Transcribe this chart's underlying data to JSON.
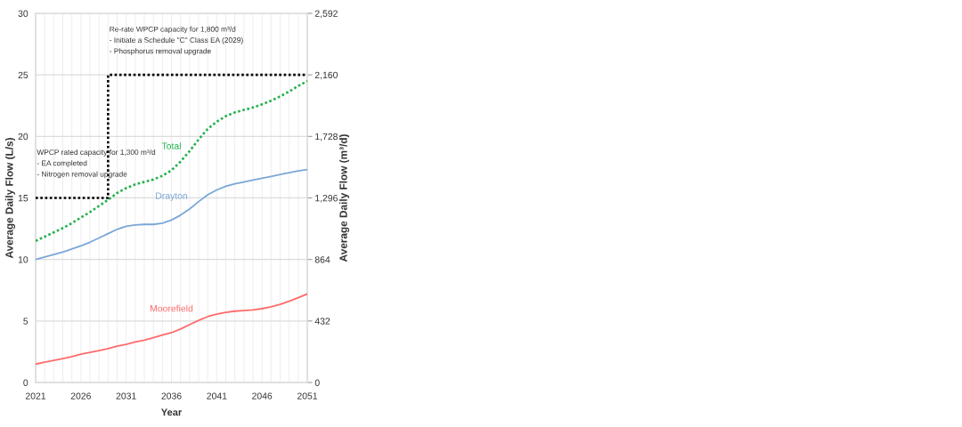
{
  "chart_data": {
    "type": "line",
    "xlabel": "Year",
    "ylabel": "Average Daily Flow (L/s)",
    "y2label": "Average Daily Flow (m³/d)",
    "x": [
      2021,
      2022,
      2023,
      2024,
      2025,
      2026,
      2027,
      2028,
      2029,
      2030,
      2031,
      2032,
      2033,
      2034,
      2035,
      2036,
      2037,
      2038,
      2039,
      2040,
      2041,
      2042,
      2043,
      2044,
      2045,
      2046,
      2047,
      2048,
      2049,
      2050,
      2051
    ],
    "series": [
      {
        "name": "Total",
        "color": "#22b14c",
        "line_style": "dotted",
        "values": [
          11.5,
          11.85,
          12.2,
          12.55,
          12.95,
          13.4,
          13.85,
          14.35,
          14.85,
          15.4,
          15.8,
          16.1,
          16.3,
          16.5,
          16.8,
          17.25,
          17.95,
          18.8,
          19.75,
          20.6,
          21.2,
          21.65,
          21.95,
          22.15,
          22.35,
          22.6,
          22.9,
          23.25,
          23.65,
          24.1,
          24.5
        ]
      },
      {
        "name": "Drayton",
        "color": "#7ba7d7",
        "values": [
          10.0,
          10.2,
          10.4,
          10.6,
          10.85,
          11.1,
          11.4,
          11.75,
          12.1,
          12.45,
          12.7,
          12.8,
          12.85,
          12.85,
          12.95,
          13.2,
          13.6,
          14.1,
          14.7,
          15.25,
          15.65,
          15.95,
          16.15,
          16.3,
          16.45,
          16.6,
          16.75,
          16.9,
          17.05,
          17.2,
          17.3
        ]
      },
      {
        "name": "Moorefield",
        "color": "#ff6b6b",
        "values": [
          1.5,
          1.65,
          1.8,
          1.95,
          2.1,
          2.3,
          2.45,
          2.6,
          2.75,
          2.95,
          3.1,
          3.3,
          3.45,
          3.65,
          3.85,
          4.05,
          4.35,
          4.7,
          5.05,
          5.35,
          5.55,
          5.7,
          5.8,
          5.85,
          5.9,
          6.0,
          6.15,
          6.35,
          6.6,
          6.9,
          7.2
        ]
      },
      {
        "type": "step",
        "color": "#000000",
        "line_style": "dotted",
        "x": [
          2021,
          2029,
          2051
        ],
        "values": [
          15,
          25,
          25
        ]
      }
    ],
    "annotations": [
      {
        "text": "WPCP rated capacity for 1,300 m³/d\n- EA completed\n- Nitrogen removal upgrade",
        "x": 2021,
        "y": 15
      },
      {
        "text": "Re-rate WPCP capacity for 1,800 m³/d\n- Initiate a Schedule \"C\" Class EA (2029)\n- Phosphorus removal upgrade",
        "x": 2029,
        "y": 25
      }
    ],
    "xlim": [
      2021,
      2051
    ],
    "xticks": [
      2021,
      {
        "value": 2022,
        "label": null
      },
      {
        "value": 2023,
        "label": null
      },
      {
        "value": 2024,
        "label": null
      },
      {
        "value": 2025,
        "label": null
      },
      2026,
      {
        "value": 2027,
        "label": null
      },
      {
        "value": 2028,
        "label": null
      },
      {
        "value": 2029,
        "label": null
      },
      {
        "value": 2030,
        "label": null
      },
      2031,
      {
        "value": 2032,
        "label": null
      },
      {
        "value": 2033,
        "label": null
      },
      {
        "value": 2034,
        "label": null
      },
      {
        "value": 2035,
        "label": null
      },
      2036,
      {
        "value": 2037,
        "label": null
      },
      {
        "value": 2038,
        "label": null
      },
      {
        "value": 2039,
        "label": null
      },
      {
        "value": 2040,
        "label": null
      },
      2041,
      {
        "value": 2042,
        "label": null
      },
      {
        "value": 2043,
        "label": null
      },
      {
        "value": 2044,
        "label": null
      },
      {
        "value": 2045,
        "label": null
      },
      2046,
      {
        "value": 2047,
        "label": null
      },
      {
        "value": 2048,
        "label": null
      },
      {
        "value": 2049,
        "label": null
      },
      {
        "value": 2050,
        "label": null
      },
      2051
    ],
    "ylim": [
      0,
      30
    ],
    "yticks": [
      0,
      5,
      10,
      15,
      20,
      25,
      30
    ],
    "y2lim": [
      0,
      2592
    ],
    "y2ticks": [
      0,
      432,
      864,
      {
        "value": 1296,
        "label": "1,296"
      },
      {
        "value": 1728,
        "label": "1,728"
      },
      {
        "value": 2160,
        "label": "2,160"
      },
      {
        "value": 2592,
        "label": "2,592"
      }
    ],
    "grid": true,
    "legend": false,
    "marker": "none",
    "line_style": "solid"
  }
}
